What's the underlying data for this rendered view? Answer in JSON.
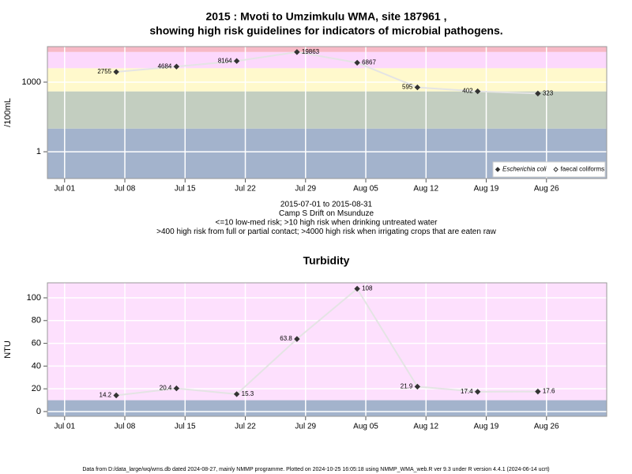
{
  "chart_data": [
    {
      "type": "line",
      "title": [
        "2015 : Mvoti to Umzimkulu WMA, site 187961 ,",
        "showing high risk guidelines for indicators of microbial pathogens."
      ],
      "notes": [
        "2015-07-01 to 2015-08-31",
        "Camp S Drift on Msunduze",
        "<=10 low-med risk; >10 high risk when drinking untreated water",
        ">400 high risk from full or partial contact; >4000 high risk when irrigating crops that are eaten raw"
      ],
      "y_label": "/100mL",
      "log_y": true,
      "x": [
        "2015-07-07",
        "2015-07-14",
        "2015-07-21",
        "2015-07-28",
        "2015-08-04",
        "2015-08-11",
        "2015-08-18",
        "2015-08-25"
      ],
      "series": [
        {
          "name": "Escherichia coli",
          "color": "#333333",
          "values": [
            2755,
            4684,
            8164,
            19863,
            6867,
            595,
            402,
            323
          ]
        },
        {
          "name": "faecal coliforms",
          "color": "#333333",
          "values": [
            null,
            null,
            null,
            null,
            null,
            null,
            null,
            null
          ]
        }
      ],
      "bands": [
        {
          "upper": 10,
          "color": "#a3b3cc"
        },
        {
          "upper": 400,
          "color": "#c3cec0"
        },
        {
          "upper": 4000,
          "color": "#fff9cc"
        },
        {
          "upper": 20000,
          "color": "#fcd8fc"
        },
        {
          "upper": 34000,
          "color": "#f7b9c6"
        }
      ],
      "xlim": [
        "2015-06-29",
        "2015-09-02"
      ],
      "xticks": [
        {
          "value": "2015-07-01",
          "label": "Jul 01"
        },
        {
          "value": "2015-07-08",
          "label": "Jul 08"
        },
        {
          "value": "2015-07-15",
          "label": "Jul 15"
        },
        {
          "value": "2015-07-22",
          "label": "Jul 22"
        },
        {
          "value": "2015-07-29",
          "label": "Jul 29"
        },
        {
          "value": "2015-08-05",
          "label": "Aug 05"
        },
        {
          "value": "2015-08-12",
          "label": "Aug 12"
        },
        {
          "value": "2015-08-19",
          "label": "Aug 19"
        },
        {
          "value": "2015-08-26",
          "label": "Aug 26"
        }
      ],
      "ylim": [
        0.07,
        34000
      ],
      "yticks": [
        1,
        1000
      ],
      "grid": true,
      "legend": "bottom right"
    },
    {
      "type": "line",
      "title": [
        "Turbidity"
      ],
      "y_label": "NTU",
      "log_y": false,
      "x": [
        "2015-07-07",
        "2015-07-14",
        "2015-07-21",
        "2015-07-28",
        "2015-08-04",
        "2015-08-11",
        "2015-08-18",
        "2015-08-25"
      ],
      "series": [
        {
          "name": "Turbidity",
          "color": "#333333",
          "values": [
            14.2,
            20.4,
            15.3,
            63.8,
            108,
            21.9,
            17.4,
            17.6
          ]
        }
      ],
      "bands": [
        {
          "upper": 10,
          "color": "#a3b3cc"
        },
        {
          "upper": 113.2,
          "color": "#fde0fd"
        }
      ],
      "xlim": [
        "2015-06-29",
        "2015-09-02"
      ],
      "xticks": [
        {
          "value": "2015-07-01",
          "label": "Jul 01"
        },
        {
          "value": "2015-07-08",
          "label": "Jul 08"
        },
        {
          "value": "2015-07-15",
          "label": "Jul 15"
        },
        {
          "value": "2015-07-22",
          "label": "Jul 22"
        },
        {
          "value": "2015-07-29",
          "label": "Jul 29"
        },
        {
          "value": "2015-08-05",
          "label": "Aug 05"
        },
        {
          "value": "2015-08-12",
          "label": "Aug 12"
        },
        {
          "value": "2015-08-19",
          "label": "Aug 19"
        },
        {
          "value": "2015-08-26",
          "label": "Aug 26"
        }
      ],
      "ylim": [
        -4.2,
        113.2
      ],
      "yticks": [
        0,
        20,
        40,
        60,
        80,
        100
      ],
      "grid": true
    }
  ],
  "footer": "Data from D:/data_large/wq/wms.db dated 2024-08-27, mainly NMMP programme. Plotted on 2024-10-25 16:05:18 using NMMP_WMA_web.R ver 9.3 under R version 4.4.1 (2024-06-14 ucrt)"
}
